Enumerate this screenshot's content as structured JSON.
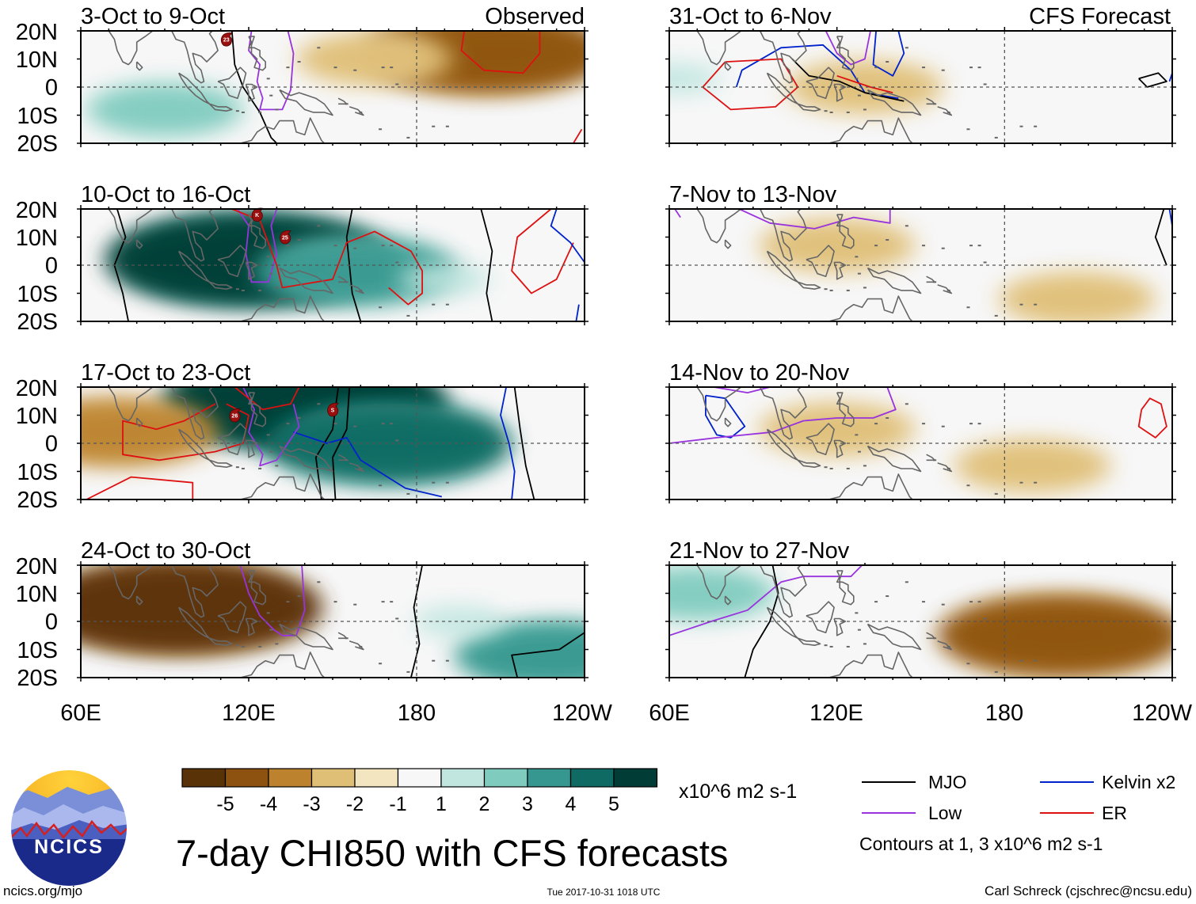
{
  "chart_data": {
    "type": "heatmap",
    "title": "7-day CHI850 with CFS forecasts",
    "variable": "CHI850",
    "units": "x10^6 m2 s-1",
    "x_ticks": [
      "60E",
      "120E",
      "180",
      "120W"
    ],
    "y_ticks": [
      "20N",
      "10N",
      "0",
      "10S",
      "20S"
    ],
    "xlim": [
      "60E",
      "120W"
    ],
    "ylim": [
      "20S",
      "20N"
    ],
    "observed_label": "Observed",
    "forecast_label": "CFS Forecast",
    "panels": [
      {
        "period": "3-Oct to 9-Oct",
        "source": "Observed",
        "anomalies": [
          {
            "lon": 90,
            "lat": -8,
            "value": 2
          },
          {
            "lon": 205,
            "lat": 12,
            "value": -4
          },
          {
            "lon": 165,
            "lat": 10,
            "value": -2
          }
        ],
        "storms": [
          {
            "lon": 112,
            "lat": 17,
            "label": "23"
          }
        ]
      },
      {
        "period": "10-Oct to 16-Oct",
        "source": "Observed",
        "anomalies": [
          {
            "lon": 120,
            "lat": 2,
            "value": 5
          },
          {
            "lon": 158,
            "lat": -2,
            "value": 3
          },
          {
            "lon": 190,
            "lat": -5,
            "value": 1
          }
        ],
        "storms": [
          {
            "lon": 123,
            "lat": 18,
            "label": "K"
          },
          {
            "lon": 133,
            "lat": 10,
            "label": "25"
          }
        ]
      },
      {
        "period": "17-Oct to 23-Oct",
        "source": "Observed",
        "anomalies": [
          {
            "lon": 170,
            "lat": 0,
            "value": 4
          },
          {
            "lon": 140,
            "lat": 14,
            "value": 5
          },
          {
            "lon": 73,
            "lat": 4,
            "value": -3
          }
        ],
        "storms": [
          {
            "lon": 115,
            "lat": 10,
            "label": "26"
          },
          {
            "lon": 150,
            "lat": 12,
            "label": "S"
          }
        ]
      },
      {
        "period": "24-Oct to 30-Oct",
        "source": "Observed",
        "anomalies": [
          {
            "lon": 95,
            "lat": 5,
            "value": -5
          },
          {
            "lon": 230,
            "lat": -12,
            "value": 3
          },
          {
            "lon": 195,
            "lat": 0,
            "value": 1
          }
        ],
        "storms": []
      },
      {
        "period": "31-Oct to 6-Nov",
        "source": "CFS Forecast",
        "anomalies": [
          {
            "lon": 130,
            "lat": 0,
            "value": -2
          },
          {
            "lon": 62,
            "lat": 3,
            "value": 1
          }
        ],
        "storms": []
      },
      {
        "period": "7-Nov to 13-Nov",
        "source": "CFS Forecast",
        "anomalies": [
          {
            "lon": 120,
            "lat": 7,
            "value": -2
          },
          {
            "lon": 206,
            "lat": -12,
            "value": -2
          }
        ],
        "storms": []
      },
      {
        "period": "14-Nov to 20-Nov",
        "source": "CFS Forecast",
        "anomalies": [
          {
            "lon": 120,
            "lat": 5,
            "value": -2
          },
          {
            "lon": 190,
            "lat": -8,
            "value": -2
          }
        ],
        "storms": []
      },
      {
        "period": "21-Nov to 27-Nov",
        "source": "CFS Forecast",
        "anomalies": [
          {
            "lon": 70,
            "lat": 10,
            "value": 2
          },
          {
            "lon": 200,
            "lat": -5,
            "value": -4
          }
        ],
        "storms": []
      }
    ],
    "colorbar": {
      "ticks": [
        "-5",
        "-4",
        "-3",
        "-2",
        "-1",
        "1",
        "2",
        "3",
        "4",
        "5"
      ],
      "colors": [
        "#5a3208",
        "#8d520f",
        "#bc822e",
        "#dfbe76",
        "#f3e5c0",
        "#f7f7f7",
        "#c1e6e0",
        "#7fcbbe",
        "#35978f",
        "#0e6a62",
        "#013d36"
      ]
    },
    "legend": [
      {
        "label": "MJO",
        "color": "#000000"
      },
      {
        "label": "Kelvin x2",
        "color": "#0022cc"
      },
      {
        "label": "Low",
        "color": "#9933dd"
      },
      {
        "label": "ER",
        "color": "#dd1111"
      }
    ],
    "contour_note": "Contours at 1, 3 x10^6 m2 s-1"
  },
  "footer": {
    "logo_text": "NCICS",
    "url": "ncics.org/mjo",
    "timestamp": "Tue 2017-10-31 1018 UTC",
    "credit": "Carl Schreck (cjschrec@ncsu.edu)"
  }
}
